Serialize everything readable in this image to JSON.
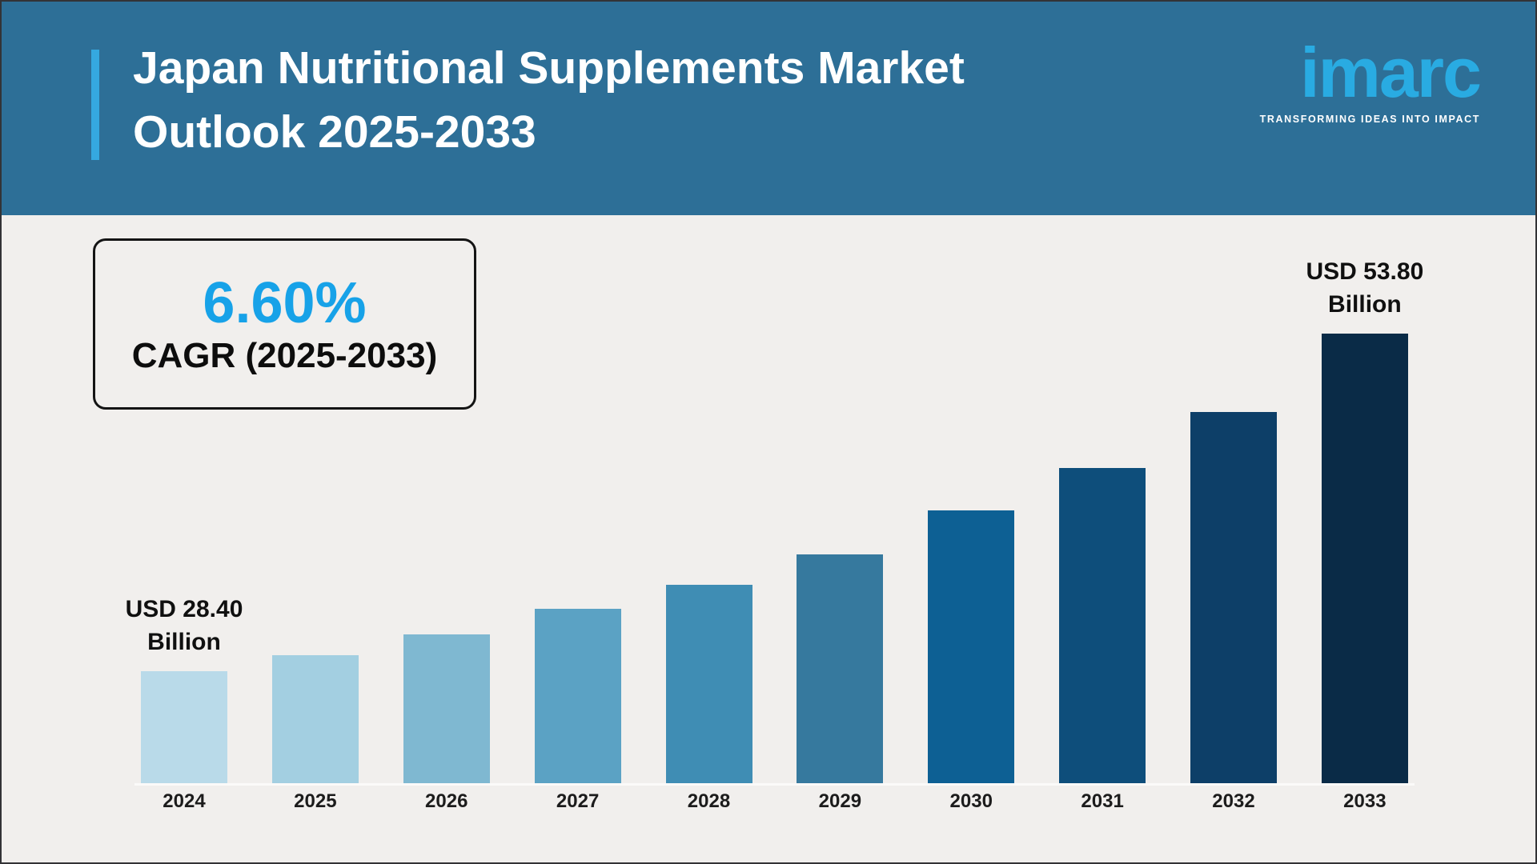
{
  "header": {
    "title_line1": "Japan Nutritional Supplements Market",
    "title_line2": "Outlook 2025-2033",
    "background": "#2d6f97",
    "accent_color": "#35a8e0",
    "logo": {
      "text": "imarc",
      "tagline": "TRANSFORMING IDEAS INTO IMPACT",
      "brand_color": "#29abe2",
      "tagline_color": "#ffffff"
    }
  },
  "cagr_box": {
    "value": "6.60%",
    "label": "CAGR (2025-2033)",
    "value_color": "#17a2e8",
    "label_color": "#0d0d0d"
  },
  "annotations": {
    "first": {
      "line1": "USD 28.40",
      "line2": "Billion"
    },
    "last": {
      "line1": "USD 53.80",
      "line2": "Billion"
    }
  },
  "chart_data": {
    "type": "bar",
    "title": "Japan Nutritional Supplements Market Outlook 2025-2033",
    "unit": "USD Billion",
    "categories": [
      "2024",
      "2025",
      "2026",
      "2027",
      "2028",
      "2029",
      "2030",
      "2031",
      "2032",
      "2033"
    ],
    "values": [
      28.4,
      29.6,
      31.2,
      33.1,
      34.9,
      37.2,
      40.5,
      43.7,
      47.9,
      53.8
    ],
    "labeled_values": {
      "2024": "USD 28.40 Billion",
      "2033": "USD 53.80 Billion"
    },
    "cagr": "6.60%",
    "bar_colors": [
      "#b9dae9",
      "#a3cfe1",
      "#7fb8d1",
      "#5ba2c4",
      "#3f8db4",
      "#36799e",
      "#0d6094",
      "#0e4e7b",
      "#0d3f68",
      "#0a2b47"
    ],
    "ylim": [
      20,
      55
    ],
    "grid": false,
    "legend": false,
    "xlabel": "",
    "ylabel": ""
  },
  "theme": {
    "body_background": "#f1efed"
  }
}
